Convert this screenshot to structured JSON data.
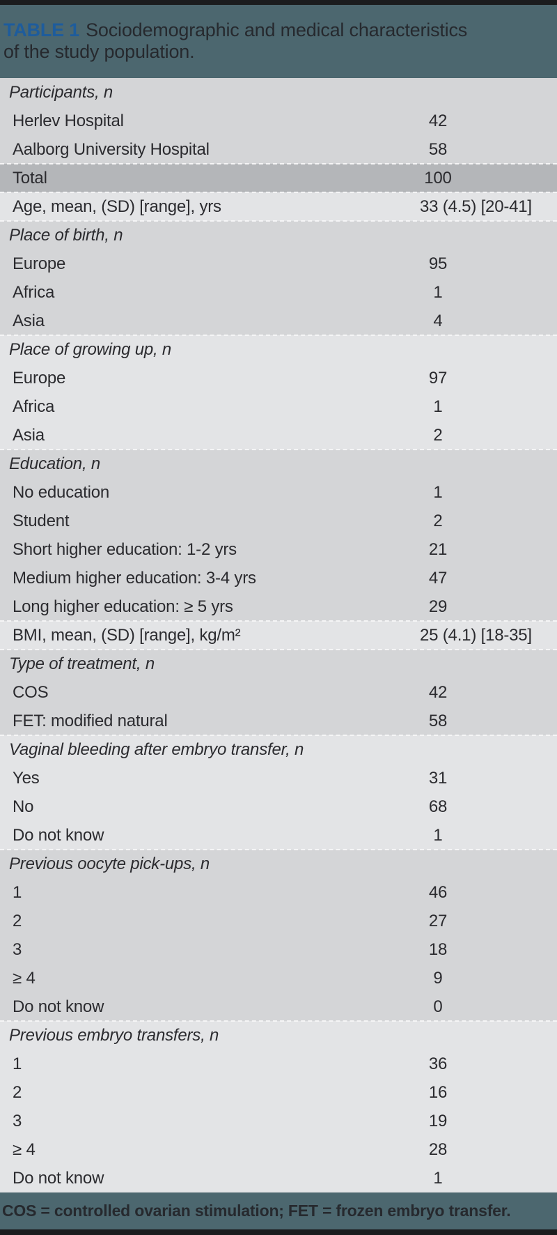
{
  "header": {
    "label": "TABLE 1",
    "title_line1": "Sociodemographic and medical characteristics",
    "title_line2": "of the study population."
  },
  "table": {
    "sections": [
      {
        "shade": "dark",
        "separator": false,
        "rows": [
          {
            "kind": "section",
            "label": "Participants, n"
          },
          {
            "kind": "item",
            "label": "Herlev Hospital",
            "value": "42"
          },
          {
            "kind": "item",
            "label": "Aalborg University Hospital",
            "value": "58"
          }
        ]
      },
      {
        "shade": "total",
        "separator": true,
        "rows": [
          {
            "kind": "item",
            "label": "Total",
            "value": "100"
          }
        ]
      },
      {
        "shade": "light",
        "separator": true,
        "rows": [
          {
            "kind": "item",
            "label": "Age, mean, (SD) [range], yrs",
            "value": "33 (4.5) [20-41]"
          }
        ]
      },
      {
        "shade": "dark",
        "separator": true,
        "rows": [
          {
            "kind": "section",
            "label": "Place of birth, n"
          },
          {
            "kind": "item",
            "label": "Europe",
            "value": "95"
          },
          {
            "kind": "item",
            "label": "Africa",
            "value": "1"
          },
          {
            "kind": "item",
            "label": "Asia",
            "value": "4"
          }
        ]
      },
      {
        "shade": "light",
        "separator": true,
        "rows": [
          {
            "kind": "section",
            "label": "Place of growing up, n"
          },
          {
            "kind": "item",
            "label": "Europe",
            "value": "97"
          },
          {
            "kind": "item",
            "label": "Africa",
            "value": "1"
          },
          {
            "kind": "item",
            "label": "Asia",
            "value": "2"
          }
        ]
      },
      {
        "shade": "dark",
        "separator": true,
        "rows": [
          {
            "kind": "section",
            "label": "Education, n"
          },
          {
            "kind": "item",
            "label": "No education",
            "value": "1"
          },
          {
            "kind": "item",
            "label": "Student",
            "value": "2"
          },
          {
            "kind": "item",
            "label": "Short higher education: 1-2 yrs",
            "value": "21"
          },
          {
            "kind": "item",
            "label": "Medium higher education: 3-4 yrs",
            "value": "47"
          },
          {
            "kind": "item",
            "label": "Long higher education: ≥ 5 yrs",
            "value": "29"
          }
        ]
      },
      {
        "shade": "light",
        "separator": true,
        "rows": [
          {
            "kind": "item",
            "label": "BMI, mean, (SD) [range], kg/m²",
            "value": "25 (4.1) [18-35]"
          }
        ]
      },
      {
        "shade": "dark",
        "separator": true,
        "rows": [
          {
            "kind": "section",
            "label": "Type of treatment, n"
          },
          {
            "kind": "item",
            "label": "COS",
            "value": "42"
          },
          {
            "kind": "item",
            "label": "FET: modified natural",
            "value": "58"
          }
        ]
      },
      {
        "shade": "light",
        "separator": true,
        "rows": [
          {
            "kind": "section",
            "label": "Vaginal bleeding after embryo transfer, n"
          },
          {
            "kind": "item",
            "label": "Yes",
            "value": "31"
          },
          {
            "kind": "item",
            "label": "No",
            "value": "68"
          },
          {
            "kind": "item",
            "label": "Do not know",
            "value": "1"
          }
        ]
      },
      {
        "shade": "dark",
        "separator": true,
        "rows": [
          {
            "kind": "section",
            "label": "Previous oocyte pick-ups, n"
          },
          {
            "kind": "item",
            "label": "1",
            "value": "46"
          },
          {
            "kind": "item",
            "label": "2",
            "value": "27"
          },
          {
            "kind": "item",
            "label": "3",
            "value": "18"
          },
          {
            "kind": "item",
            "label": "≥ 4",
            "value": "9"
          },
          {
            "kind": "item",
            "label": "Do not know",
            "value": "0"
          }
        ]
      },
      {
        "shade": "light",
        "separator": true,
        "rows": [
          {
            "kind": "section",
            "label": "Previous embryo transfers, n"
          },
          {
            "kind": "item",
            "label": "1",
            "value": "36"
          },
          {
            "kind": "item",
            "label": "2",
            "value": "16"
          },
          {
            "kind": "item",
            "label": "3",
            "value": "19"
          },
          {
            "kind": "item",
            "label": "≥ 4",
            "value": "28"
          },
          {
            "kind": "item",
            "label": "Do not know",
            "value": "1"
          }
        ]
      }
    ]
  },
  "footer": {
    "note": "COS = controlled ovarian stimulation; FET = frozen embryo transfer."
  },
  "colors": {
    "band_teal": "#4c676f",
    "accent_blue": "#1e5c9c",
    "row_dark": "#d4d5d7",
    "row_light": "#e3e4e6",
    "row_total": "#b4b6b9",
    "rule_black": "#1b1c1e",
    "ink": "#2b2b2f"
  }
}
